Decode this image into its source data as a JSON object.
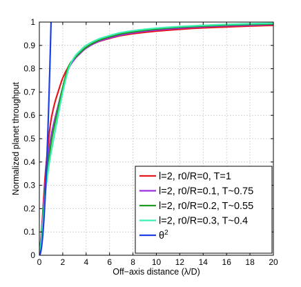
{
  "chart_data": {
    "type": "line",
    "title": "",
    "xlabel": "Off−axis distance (λ/D)",
    "ylabel": "Normalized planet throughput",
    "xlim": [
      0,
      20
    ],
    "ylim": [
      0,
      1
    ],
    "xticks": [
      "0",
      "2",
      "4",
      "6",
      "8",
      "10",
      "12",
      "14",
      "16",
      "18",
      "20"
    ],
    "yticks": [
      "0",
      "0.1",
      "0.2",
      "0.3",
      "0.4",
      "0.5",
      "0.6",
      "0.7",
      "0.8",
      "0.9",
      "1"
    ],
    "grid": true,
    "legend_position": "bottom-right",
    "series": [
      {
        "name": "l=2, r0/R=0, T=1",
        "color": "#e8161c",
        "x": [
          0,
          0.2,
          0.5,
          0.8,
          1.0,
          1.3,
          1.6,
          2.0,
          2.5,
          3.0,
          3.5,
          4.0,
          5.0,
          6.0,
          7.0,
          8.0,
          9.0,
          10.0,
          12.0,
          14.0,
          16.0,
          18.0,
          20.0
        ],
        "y": [
          0,
          0.11,
          0.34,
          0.5,
          0.58,
          0.65,
          0.7,
          0.76,
          0.81,
          0.845,
          0.87,
          0.89,
          0.915,
          0.93,
          0.942,
          0.95,
          0.956,
          0.961,
          0.969,
          0.975,
          0.979,
          0.983,
          0.986
        ]
      },
      {
        "name": "l=2, r0/R=0.1, T~0.75",
        "color": "#9a2fe0",
        "x": [
          0,
          0.2,
          0.5,
          0.8,
          1.0,
          1.3,
          1.6,
          2.0,
          2.5,
          3.0,
          3.5,
          4.0,
          5.0,
          6.0,
          7.0,
          8.0,
          9.0,
          10.0,
          12.0,
          14.0,
          16.0,
          18.0,
          20.0
        ],
        "y": [
          0,
          0.1,
          0.3,
          0.44,
          0.51,
          0.58,
          0.64,
          0.72,
          0.8,
          0.84,
          0.866,
          0.888,
          0.916,
          0.932,
          0.945,
          0.954,
          0.961,
          0.966,
          0.974,
          0.98,
          0.984,
          0.987,
          0.99
        ]
      },
      {
        "name": "l=2, r0/R=0.2, T~0.55",
        "color": "#1e9a1e",
        "x": [
          0,
          0.2,
          0.5,
          0.8,
          1.0,
          1.3,
          1.6,
          2.0,
          2.5,
          3.0,
          3.5,
          4.0,
          5.0,
          6.0,
          7.0,
          8.0,
          9.0,
          10.0,
          12.0,
          14.0,
          16.0,
          18.0,
          20.0
        ],
        "y": [
          0,
          0.09,
          0.28,
          0.41,
          0.48,
          0.56,
          0.63,
          0.72,
          0.81,
          0.845,
          0.87,
          0.892,
          0.92,
          0.937,
          0.95,
          0.958,
          0.965,
          0.97,
          0.978,
          0.983,
          0.987,
          0.99,
          0.992
        ]
      },
      {
        "name": "l=2, r0/R=0.3, T~0.4",
        "color": "#3af0b4",
        "x": [
          0,
          0.2,
          0.5,
          0.8,
          1.0,
          1.3,
          1.6,
          2.0,
          2.5,
          3.0,
          3.5,
          4.0,
          5.0,
          6.0,
          7.0,
          8.0,
          9.0,
          10.0,
          12.0,
          14.0,
          16.0,
          18.0,
          20.0
        ],
        "y": [
          0,
          0.08,
          0.26,
          0.38,
          0.44,
          0.52,
          0.6,
          0.7,
          0.8,
          0.85,
          0.878,
          0.9,
          0.926,
          0.942,
          0.955,
          0.963,
          0.969,
          0.974,
          0.981,
          0.986,
          0.99,
          0.993,
          0.995
        ]
      },
      {
        "name": "θ",
        "name_superscript": "2",
        "color": "#1f3ee6",
        "x": [
          0,
          0.1,
          0.2,
          0.3,
          0.4,
          0.5,
          0.6,
          0.7,
          0.8,
          0.9,
          1.0
        ],
        "y": [
          0,
          0.01,
          0.04,
          0.09,
          0.16,
          0.25,
          0.36,
          0.49,
          0.64,
          0.81,
          1.0
        ]
      }
    ]
  }
}
